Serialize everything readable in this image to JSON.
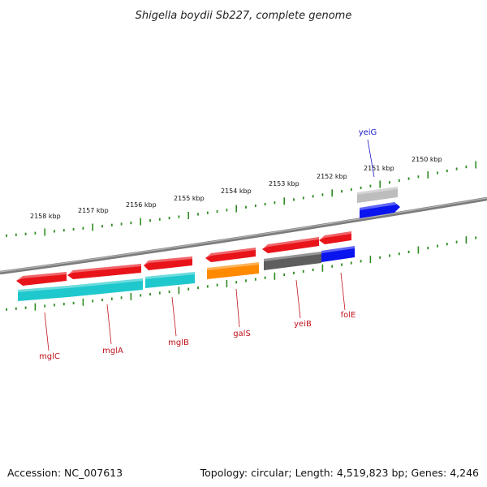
{
  "title": "Shigella boydii Sb227, complete genome",
  "footer": {
    "accession": "Accession: NC_007613",
    "summary": "Topology: circular; Length: 4,519,823 bp; Genes: 4,246"
  },
  "scale_labels": [
    "2158 kbp",
    "2157 kbp",
    "2156 kbp",
    "2155 kbp",
    "2154 kbp",
    "2153 kbp",
    "2152 kbp",
    "2151 kbp",
    "2150 kbp"
  ],
  "colors": {
    "backbone": "#808080",
    "tick": "#2e8b22",
    "red": "#e8141a",
    "cyan": "#1ec8cc",
    "orange": "#ff8a00",
    "gray_dark": "#5e5e5e",
    "gray_light": "#bdbdbd",
    "blue": "#0a14ee",
    "label_red": "#c0111a",
    "label_blue": "#1d1dc8"
  },
  "genes": [
    {
      "name": "mglC",
      "color": "label_red"
    },
    {
      "name": "mglA",
      "color": "label_red"
    },
    {
      "name": "mglB",
      "color": "label_red"
    },
    {
      "name": "galS",
      "color": "label_red"
    },
    {
      "name": "yeiB",
      "color": "label_red"
    },
    {
      "name": "folE",
      "color": "label_red"
    },
    {
      "name": "yeiG",
      "color": "label_blue"
    }
  ]
}
